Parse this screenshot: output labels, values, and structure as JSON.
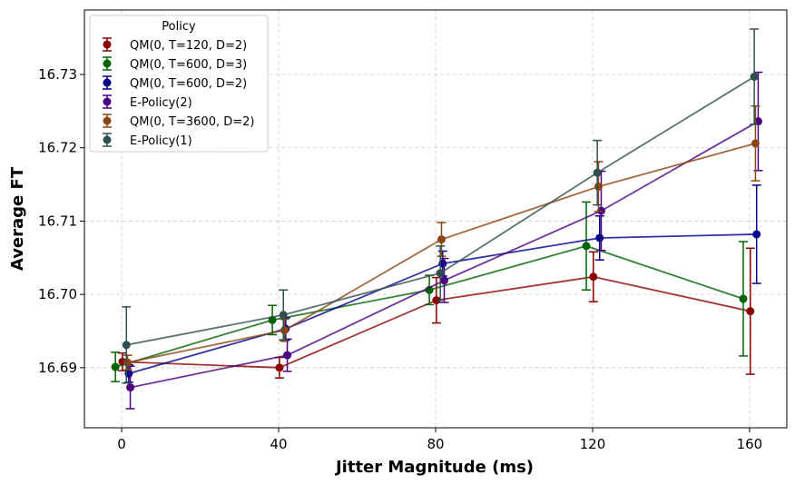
{
  "chart_data": {
    "type": "line",
    "xlabel": "Jitter Magnitude (ms)",
    "ylabel": "Average FT",
    "x": [
      0,
      40,
      80,
      120,
      160
    ],
    "xticks": [
      0,
      40,
      80,
      120,
      160
    ],
    "yticks": [
      16.69,
      16.7,
      16.71,
      16.72,
      16.73
    ],
    "ytick_labels": [
      "16.69",
      "16.70",
      "16.71",
      "16.72",
      "16.73"
    ],
    "xlim": [
      -9.5,
      169.5
    ],
    "ylim": [
      16.6818,
      16.7388
    ],
    "grid": true,
    "legend_title": "Policy",
    "legend_position": "upper-left",
    "series": [
      {
        "name": "QM(0, T=120, D=2)",
        "color": "#8b0000",
        "offset": 0.2,
        "values": [
          16.6908,
          16.69,
          16.6992,
          16.7024,
          16.6977
        ],
        "errors": [
          0.0012,
          0.0014,
          0.0031,
          0.0034,
          0.0086
        ]
      },
      {
        "name": "QM(0, T=600, D=3)",
        "color": "#006400",
        "offset": -1.6,
        "values": [
          16.6901,
          16.6965,
          16.7006,
          16.7066,
          16.6994
        ],
        "errors": [
          0.002,
          0.002,
          0.002,
          0.006,
          0.0078
        ]
      },
      {
        "name": "QM(0, T=600, D=2)",
        "color": "#00008b",
        "offset": 1.8,
        "values": [
          16.6892,
          16.6953,
          16.7042,
          16.7077,
          16.7082
        ],
        "errors": [
          0.0012,
          0.0015,
          0.0017,
          0.003,
          0.0067
        ]
      },
      {
        "name": "E-Policy(2)",
        "color": "#4b0082",
        "offset": 2.2,
        "values": [
          16.6873,
          16.6917,
          16.7019,
          16.7114,
          16.7236
        ],
        "errors": [
          0.0029,
          0.0022,
          0.003,
          0.0054,
          0.0067
        ]
      },
      {
        "name": "QM(0, T=3600, D=2)",
        "color": "#8b4513",
        "offset": 1.5,
        "values": [
          16.6907,
          16.6951,
          16.7075,
          16.7147,
          16.7206
        ],
        "errors": [
          0.001,
          0.0015,
          0.0023,
          0.0034,
          0.0051
        ]
      },
      {
        "name": "E-Policy(1)",
        "color": "#2f4f4f",
        "offset": 1.2,
        "values": [
          16.6931,
          16.6972,
          16.7029,
          16.7166,
          16.7297
        ],
        "errors": [
          0.0052,
          0.0034,
          0.0037,
          0.0044,
          0.0065
        ]
      }
    ]
  }
}
